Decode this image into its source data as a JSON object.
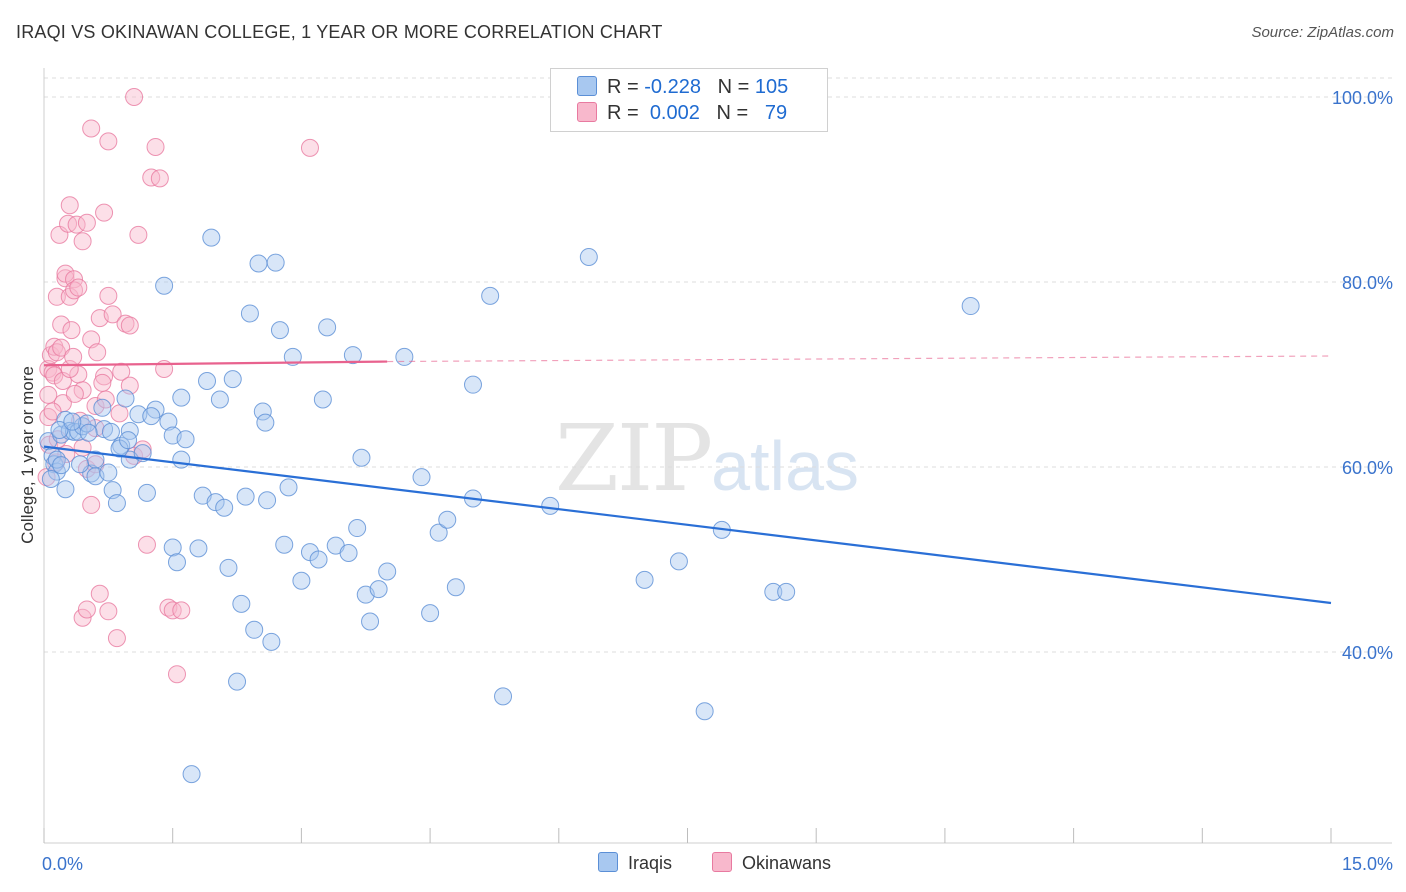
{
  "header": {
    "title": "IRAQI VS OKINAWAN COLLEGE, 1 YEAR OR MORE CORRELATION CHART",
    "source": "Source: ZipAtlas.com"
  },
  "legend": {
    "rows": [
      {
        "r_label": "R = ",
        "r_value": "-0.228",
        "n_label": "N = ",
        "n_value": "105",
        "color": "#a8c8f0"
      },
      {
        "r_label": "R = ",
        "r_value": "0.002",
        "n_label": "N = ",
        "n_value": "79",
        "color": "#f8b8cc"
      }
    ]
  },
  "watermark": {
    "zip": "ZIP",
    "atlas": "atlas"
  },
  "colors": {
    "blue_fill": "#a8c8f0",
    "blue_stroke": "#5b8fd6",
    "blue_line": "#2a6fd6",
    "pink_fill": "#f8b8cc",
    "pink_stroke": "#e87aa0",
    "pink_line": "#e8628e",
    "axis_text": "#3a73cc",
    "grid": "#dddddd"
  },
  "chart_data": {
    "type": "scatter",
    "title": "IRAQI VS OKINAWAN COLLEGE, 1 YEAR OR MORE CORRELATION CHART",
    "xlabel": "",
    "ylabel": "College, 1 year or more",
    "xlim": [
      0,
      15
    ],
    "ylim": [
      20,
      102
    ],
    "x_tick_labels": [
      "0.0%",
      "15.0%"
    ],
    "y_ticks": [
      40,
      60,
      80,
      100
    ],
    "y_tick_labels": [
      "40.0%",
      "60.0%",
      "80.0%",
      "100.0%"
    ],
    "grid": true,
    "legend_labels": [
      "Iraqis",
      "Okinawans"
    ],
    "series": [
      {
        "name": "Iraqis",
        "r": -0.228,
        "n": 105,
        "trend": {
          "x": [
            0.0,
            15.0
          ],
          "y": [
            62.2,
            45.3
          ]
        },
        "points": [
          [
            0.05,
            62.8
          ],
          [
            0.1,
            61.2
          ],
          [
            0.12,
            60.3
          ],
          [
            0.15,
            59.5
          ],
          [
            0.15,
            60.8
          ],
          [
            0.2,
            63.5
          ],
          [
            0.2,
            60.2
          ],
          [
            0.25,
            65.1
          ],
          [
            0.3,
            63.9
          ],
          [
            0.25,
            57.6
          ],
          [
            0.35,
            63.8
          ],
          [
            0.4,
            63.8
          ],
          [
            0.45,
            64.4
          ],
          [
            0.5,
            64.7
          ],
          [
            0.55,
            59.3
          ],
          [
            0.6,
            60.8
          ],
          [
            0.6,
            59.0
          ],
          [
            0.7,
            64.1
          ],
          [
            0.75,
            59.4
          ],
          [
            0.8,
            57.5
          ],
          [
            0.85,
            56.1
          ],
          [
            0.9,
            62.3
          ],
          [
            0.95,
            67.4
          ],
          [
            1.0,
            60.8
          ],
          [
            1.0,
            63.9
          ],
          [
            1.1,
            65.7
          ],
          [
            1.15,
            61.5
          ],
          [
            1.2,
            57.2
          ],
          [
            1.3,
            66.2
          ],
          [
            1.25,
            65.5
          ],
          [
            1.4,
            79.6
          ],
          [
            1.45,
            64.9
          ],
          [
            1.5,
            63.4
          ],
          [
            1.5,
            51.3
          ],
          [
            1.55,
            49.7
          ],
          [
            1.6,
            60.8
          ],
          [
            1.6,
            67.5
          ],
          [
            1.65,
            63.0
          ],
          [
            1.72,
            26.8
          ],
          [
            1.8,
            51.2
          ],
          [
            1.9,
            69.3
          ],
          [
            1.85,
            56.9
          ],
          [
            1.95,
            84.8
          ],
          [
            2.0,
            56.2
          ],
          [
            2.05,
            67.3
          ],
          [
            2.1,
            55.6
          ],
          [
            2.15,
            49.1
          ],
          [
            2.2,
            69.5
          ],
          [
            2.25,
            36.8
          ],
          [
            2.3,
            45.2
          ],
          [
            2.35,
            56.8
          ],
          [
            2.4,
            76.6
          ],
          [
            2.45,
            42.4
          ],
          [
            2.5,
            82.0
          ],
          [
            2.55,
            66.0
          ],
          [
            2.58,
            64.8
          ],
          [
            2.6,
            56.4
          ],
          [
            2.65,
            41.1
          ],
          [
            2.7,
            82.1
          ],
          [
            2.75,
            74.8
          ],
          [
            2.8,
            51.6
          ],
          [
            2.85,
            57.8
          ],
          [
            2.9,
            71.9
          ],
          [
            3.0,
            47.7
          ],
          [
            3.1,
            50.8
          ],
          [
            3.2,
            50.0
          ],
          [
            3.25,
            67.3
          ],
          [
            3.3,
            75.1
          ],
          [
            3.4,
            51.5
          ],
          [
            3.55,
            50.7
          ],
          [
            3.6,
            72.1
          ],
          [
            3.65,
            53.4
          ],
          [
            3.7,
            61.0
          ],
          [
            3.75,
            46.2
          ],
          [
            3.8,
            43.3
          ],
          [
            3.9,
            46.8
          ],
          [
            4.0,
            48.7
          ],
          [
            4.2,
            71.9
          ],
          [
            4.4,
            58.9
          ],
          [
            4.5,
            44.2
          ],
          [
            4.6,
            52.9
          ],
          [
            4.7,
            54.3
          ],
          [
            4.8,
            47.0
          ],
          [
            5.0,
            56.6
          ],
          [
            5.0,
            68.9
          ],
          [
            5.2,
            78.5
          ],
          [
            5.35,
            35.2
          ],
          [
            5.9,
            55.8
          ],
          [
            6.35,
            82.7
          ],
          [
            7.0,
            47.8
          ],
          [
            7.4,
            49.8
          ],
          [
            7.7,
            33.6
          ],
          [
            7.9,
            53.2
          ],
          [
            8.5,
            46.5
          ],
          [
            8.65,
            46.5
          ],
          [
            10.8,
            77.4
          ],
          [
            0.08,
            58.7
          ],
          [
            0.18,
            64.0
          ],
          [
            0.33,
            64.9
          ],
          [
            0.42,
            60.3
          ],
          [
            0.52,
            63.7
          ],
          [
            0.68,
            66.4
          ],
          [
            0.78,
            63.8
          ],
          [
            0.88,
            62.0
          ],
          [
            0.98,
            62.9
          ]
        ]
      },
      {
        "name": "Okinawans",
        "r": 0.002,
        "n": 79,
        "trend": {
          "x": [
            0.0,
            4.0
          ],
          "y": [
            71.0,
            71.4
          ]
        },
        "trend_extended": {
          "x": [
            4.0,
            15.0
          ],
          "y": [
            71.4,
            72.0
          ]
        },
        "points": [
          [
            0.03,
            58.9
          ],
          [
            0.05,
            65.4
          ],
          [
            0.05,
            67.8
          ],
          [
            0.05,
            70.6
          ],
          [
            0.08,
            72.1
          ],
          [
            0.1,
            70.2
          ],
          [
            0.12,
            73.0
          ],
          [
            0.12,
            69.9
          ],
          [
            0.15,
            78.4
          ],
          [
            0.15,
            72.4
          ],
          [
            0.18,
            85.1
          ],
          [
            0.2,
            75.4
          ],
          [
            0.2,
            72.9
          ],
          [
            0.22,
            66.9
          ],
          [
            0.22,
            69.3
          ],
          [
            0.25,
            80.4
          ],
          [
            0.25,
            80.9
          ],
          [
            0.28,
            86.3
          ],
          [
            0.3,
            88.3
          ],
          [
            0.3,
            78.4
          ],
          [
            0.32,
            74.8
          ],
          [
            0.35,
            80.3
          ],
          [
            0.35,
            79.1
          ],
          [
            0.38,
            86.2
          ],
          [
            0.4,
            79.4
          ],
          [
            0.4,
            70.0
          ],
          [
            0.42,
            65.0
          ],
          [
            0.45,
            84.4
          ],
          [
            0.45,
            68.3
          ],
          [
            0.45,
            62.1
          ],
          [
            0.45,
            43.7
          ],
          [
            0.5,
            86.4
          ],
          [
            0.5,
            59.8
          ],
          [
            0.5,
            44.6
          ],
          [
            0.55,
            96.6
          ],
          [
            0.55,
            73.8
          ],
          [
            0.55,
            55.9
          ],
          [
            0.6,
            66.6
          ],
          [
            0.6,
            64.2
          ],
          [
            0.6,
            60.3
          ],
          [
            0.65,
            76.1
          ],
          [
            0.65,
            46.3
          ],
          [
            0.7,
            87.5
          ],
          [
            0.7,
            69.8
          ],
          [
            0.72,
            67.3
          ],
          [
            0.75,
            95.2
          ],
          [
            0.75,
            78.5
          ],
          [
            0.75,
            44.4
          ],
          [
            0.8,
            76.5
          ],
          [
            0.85,
            41.5
          ],
          [
            0.88,
            65.8
          ],
          [
            0.9,
            70.3
          ],
          [
            0.95,
            75.5
          ],
          [
            1.0,
            75.3
          ],
          [
            1.0,
            68.8
          ],
          [
            1.05,
            61.2
          ],
          [
            1.05,
            100.0
          ],
          [
            1.1,
            85.1
          ],
          [
            1.15,
            61.9
          ],
          [
            1.2,
            51.6
          ],
          [
            1.25,
            91.3
          ],
          [
            1.3,
            94.6
          ],
          [
            1.35,
            91.2
          ],
          [
            1.4,
            70.6
          ],
          [
            1.45,
            44.8
          ],
          [
            1.5,
            44.5
          ],
          [
            1.55,
            37.6
          ],
          [
            1.6,
            44.5
          ],
          [
            3.1,
            94.5
          ],
          [
            0.06,
            62.4
          ],
          [
            0.1,
            66.0
          ],
          [
            0.14,
            60.5
          ],
          [
            0.16,
            63.0
          ],
          [
            0.26,
            61.4
          ],
          [
            0.3,
            70.6
          ],
          [
            0.34,
            71.9
          ],
          [
            0.36,
            67.9
          ],
          [
            0.62,
            72.4
          ],
          [
            0.68,
            69.1
          ]
        ]
      }
    ]
  }
}
